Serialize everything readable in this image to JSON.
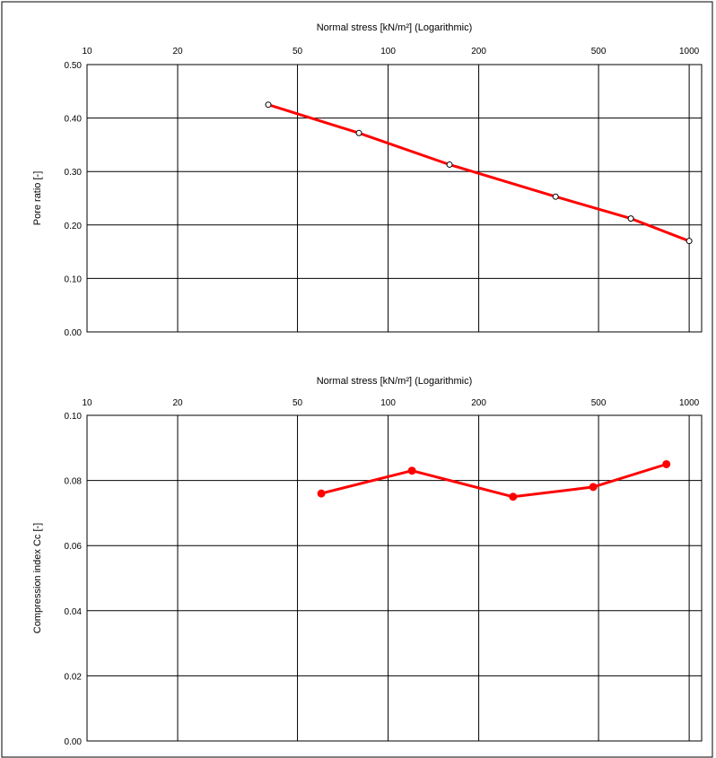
{
  "chart_data": [
    {
      "type": "line",
      "xlabel": "Normal stress [kN/m²]  (Logarithmic)",
      "ylabel": "Pore ratio [-]",
      "x_scale": "log",
      "xlim": [
        10,
        1100
      ],
      "ylim": [
        0.0,
        0.5
      ],
      "x_ticks": [
        10,
        20,
        50,
        100,
        200,
        500,
        1000
      ],
      "x_tick_labels": [
        "10",
        "20",
        "50",
        "100",
        "200",
        "500",
        "1000"
      ],
      "y_ticks": [
        0.0,
        0.1,
        0.2,
        0.3,
        0.4,
        0.5
      ],
      "y_tick_labels": [
        "0.00",
        "0.10",
        "0.20",
        "0.30",
        "0.40",
        "0.50"
      ],
      "x_axis_position": "top",
      "grid": true,
      "color": "#ff0000",
      "series": [
        {
          "marker": "open-circle",
          "x": [
            40,
            80,
            160,
            360,
            640,
            1000
          ],
          "y": [
            0.425,
            0.372,
            0.313,
            0.253,
            0.212,
            0.17
          ]
        }
      ]
    },
    {
      "type": "line",
      "xlabel": "Normal stress [kN/m²]  (Logarithmic)",
      "ylabel": "Compression index Cc [-]",
      "x_scale": "log",
      "xlim": [
        10,
        1100
      ],
      "ylim": [
        0.0,
        0.1
      ],
      "x_ticks": [
        10,
        20,
        50,
        100,
        200,
        500,
        1000
      ],
      "x_tick_labels": [
        "10",
        "20",
        "50",
        "100",
        "200",
        "500",
        "1000"
      ],
      "y_ticks": [
        0.0,
        0.02,
        0.04,
        0.06,
        0.08,
        0.1
      ],
      "y_tick_labels": [
        "0.00",
        "0.02",
        "0.04",
        "0.06",
        "0.08",
        "0.10"
      ],
      "x_axis_position": "top",
      "grid": true,
      "color": "#ff0000",
      "series": [
        {
          "marker": "filled-circle",
          "x": [
            60,
            120,
            260,
            480,
            840
          ],
          "y": [
            0.076,
            0.083,
            0.075,
            0.078,
            0.085
          ]
        }
      ]
    }
  ]
}
